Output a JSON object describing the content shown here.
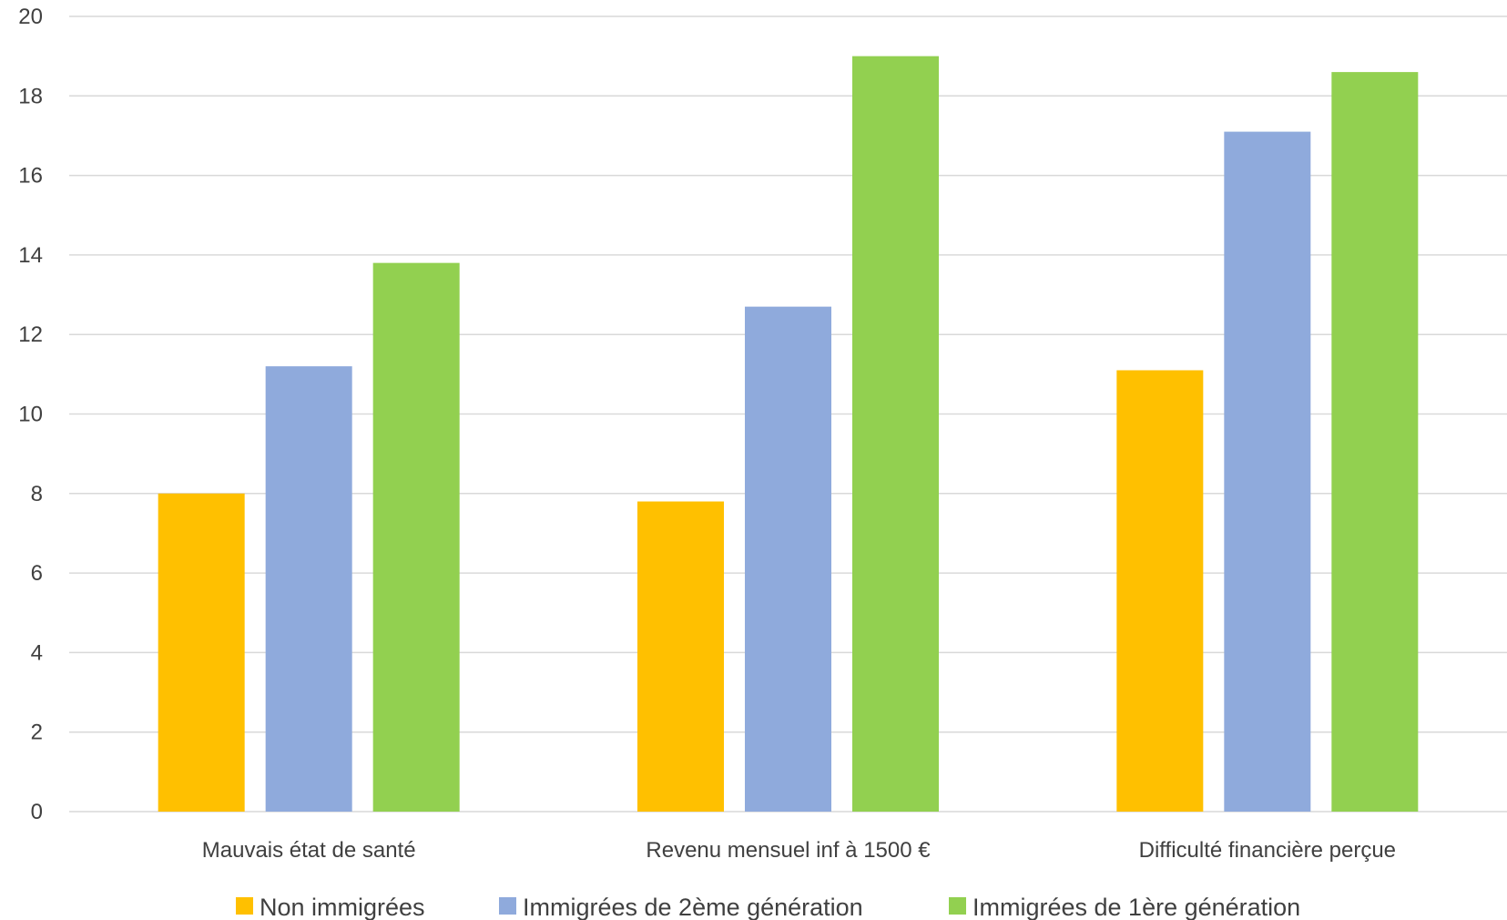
{
  "chart_data": {
    "type": "bar",
    "categories": [
      "Mauvais état de santé",
      "Revenu mensuel inf à 1500 €",
      "Difficulté financière perçue"
    ],
    "series": [
      {
        "name": "Non immigrées",
        "color": "#FFC000",
        "values": [
          8.0,
          7.8,
          11.1
        ]
      },
      {
        "name": "Immigrées de 2ème génération",
        "color": "#8FAADC",
        "values": [
          11.2,
          12.7,
          17.1
        ]
      },
      {
        "name": "Immigrées de 1ère génération",
        "color": "#92D050",
        "values": [
          13.8,
          19.0,
          18.6
        ]
      }
    ],
    "ylim": [
      0,
      20
    ],
    "yticks": [
      0,
      2,
      4,
      6,
      8,
      10,
      12,
      14,
      16,
      18,
      20
    ],
    "grid": true,
    "legend_position": "bottom"
  }
}
